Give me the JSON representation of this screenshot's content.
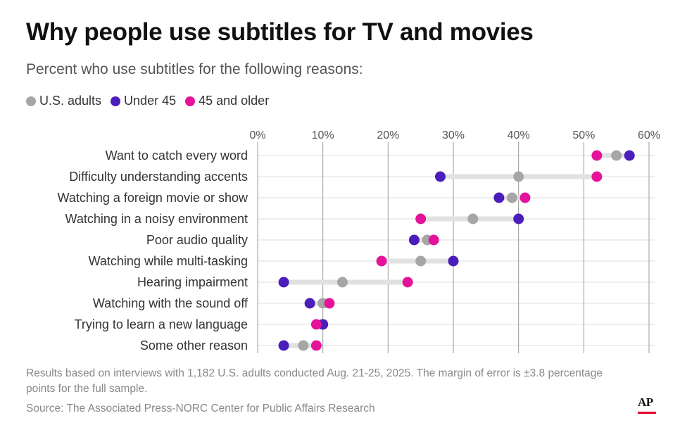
{
  "title": "Why people use subtitles for TV and movies",
  "subtitle": "Percent who use subtitles for the following reasons:",
  "legend": [
    {
      "label": "U.S. adults",
      "color": "#a6a6a6"
    },
    {
      "label": "Under 45",
      "color": "#4b1dbb"
    },
    {
      "label": "45 and older",
      "color": "#e5139a"
    }
  ],
  "chart_data": {
    "type": "dot",
    "title": "Why people use subtitles for TV and movies",
    "xlim": [
      0,
      60
    ],
    "x_ticks": [
      0,
      10,
      20,
      30,
      40,
      50,
      60
    ],
    "x_tick_labels": [
      "0%",
      "10%",
      "20%",
      "30%",
      "40%",
      "50%",
      "60%"
    ],
    "categories": [
      "Want to catch every word",
      "Difficulty understanding accents",
      "Watching a foreign movie or show",
      "Watching in a noisy environment",
      "Poor audio quality",
      "Watching while multi-tasking",
      "Hearing impairment",
      "Watching with the sound off",
      "Trying to learn a new language",
      "Some other reason"
    ],
    "series": [
      {
        "name": "U.S. adults",
        "color": "#a6a6a6",
        "values": [
          55,
          40,
          39,
          33,
          26,
          25,
          13,
          10,
          10,
          7
        ]
      },
      {
        "name": "Under 45",
        "color": "#4b1dbb",
        "values": [
          57,
          28,
          37,
          40,
          24,
          30,
          4,
          8,
          10,
          4
        ]
      },
      {
        "name": "45 and older",
        "color": "#e5139a",
        "values": [
          52,
          52,
          41,
          25,
          27,
          19,
          23,
          11,
          9,
          9
        ]
      }
    ]
  },
  "footer": {
    "note": "Results based on interviews with 1,182 U.S. adults conducted Aug. 21-25, 2025. The margin of error is ±3.8 percentage points for the full sample.",
    "source": "Source: The Associated Press-NORC Center for Public Affairs Research"
  },
  "logo": {
    "text": "AP"
  }
}
